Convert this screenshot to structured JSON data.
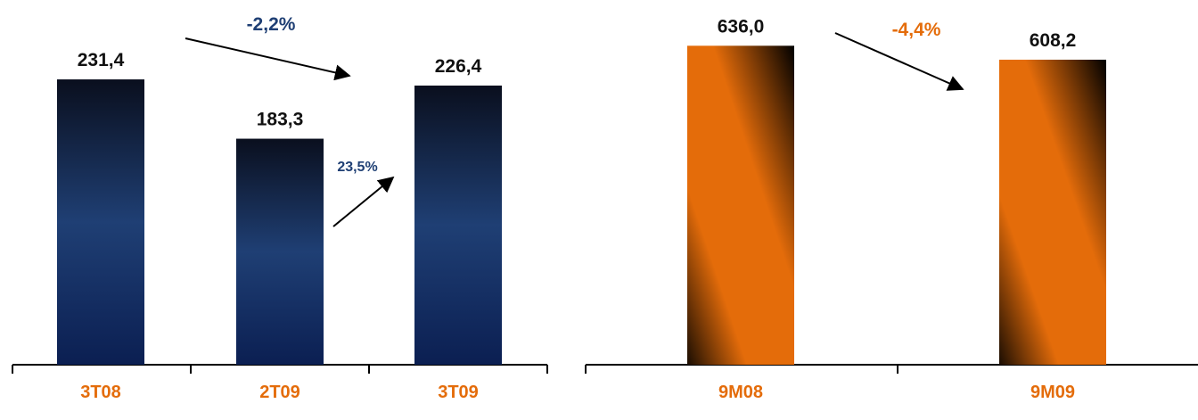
{
  "chart_data": [
    {
      "type": "bar",
      "categories": [
        "3T08",
        "2T09",
        "3T09"
      ],
      "values": [
        231.4,
        183.3,
        226.4
      ],
      "value_labels": [
        "231,4",
        "183,3",
        "226,4"
      ],
      "ylim": [
        0,
        290
      ],
      "grid": false,
      "colors": {
        "bar_top": "#0a0f1e",
        "bar_mid": "#1f3f74",
        "bar_bottom": "#0b1f52",
        "category_label": "#e46c0a"
      },
      "annotations": [
        {
          "text": "-2,2%",
          "from": "3T08",
          "to": "3T09",
          "color": "#1f3f74"
        },
        {
          "text": "23,5%",
          "from": "2T09",
          "to": "3T09",
          "color": "#1f3f74"
        }
      ]
    },
    {
      "type": "bar",
      "categories": [
        "9M08",
        "9M09"
      ],
      "values": [
        636.0,
        608.2
      ],
      "value_labels": [
        "636,0",
        "608,2"
      ],
      "ylim": [
        0,
        713
      ],
      "grid": false,
      "colors": {
        "bar_main": "#e46c0a",
        "bar_shade": "#000000",
        "category_label": "#e46c0a"
      },
      "annotations": [
        {
          "text": "-4,4%",
          "from": "9M08",
          "to": "9M09",
          "color": "#e46c0a"
        }
      ]
    }
  ]
}
